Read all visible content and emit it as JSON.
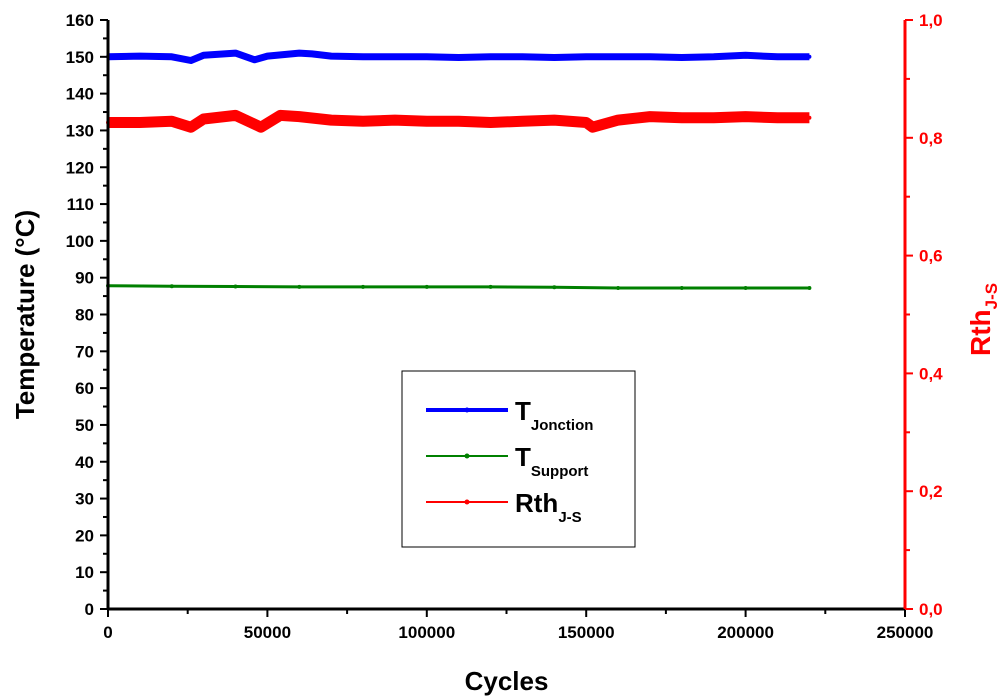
{
  "chart_data": {
    "type": "scatter",
    "xlabel": "Cycles",
    "ylabel": "Temperature (°C)",
    "y2label_main": "Rth",
    "y2label_sub": "J-S",
    "xlim": [
      0,
      250000
    ],
    "ylim": [
      0,
      160
    ],
    "y2lim": [
      0.0,
      1.0
    ],
    "x_ticks": [
      0,
      50000,
      100000,
      150000,
      200000,
      250000
    ],
    "x_tick_labels": [
      "0",
      "50000",
      "100000",
      "150000",
      "200000",
      "250000"
    ],
    "y_ticks": [
      0,
      10,
      20,
      30,
      40,
      50,
      60,
      70,
      80,
      90,
      100,
      110,
      120,
      130,
      140,
      150,
      160
    ],
    "y_tick_labels": [
      "0",
      "10",
      "20",
      "30",
      "40",
      "50",
      "60",
      "70",
      "80",
      "90",
      "100",
      "110",
      "120",
      "130",
      "140",
      "150",
      "160"
    ],
    "y2_ticks": [
      0.0,
      0.2,
      0.4,
      0.6,
      0.8,
      1.0
    ],
    "y2_tick_labels": [
      "0,0",
      "0,2",
      "0,4",
      "0,6",
      "0,8",
      "1,0"
    ],
    "grid": false,
    "legend_position": "center",
    "series": [
      {
        "name_main": "T",
        "name_sub": "Jonction",
        "axis": "left",
        "color": "#0000ff",
        "x": [
          0,
          10000,
          20000,
          26000,
          30000,
          40000,
          46000,
          50000,
          60000,
          64000,
          70000,
          80000,
          90000,
          100000,
          110000,
          120000,
          130000,
          140000,
          150000,
          160000,
          170000,
          180000,
          190000,
          200000,
          210000,
          220000
        ],
        "values": [
          150.0,
          150.2,
          150.0,
          149.0,
          150.4,
          151.0,
          149.2,
          150.2,
          151.0,
          150.8,
          150.2,
          150.0,
          150.0,
          150.0,
          149.8,
          150.0,
          150.0,
          149.8,
          150.0,
          150.0,
          150.0,
          149.8,
          150.0,
          150.4,
          150.0,
          150.0
        ]
      },
      {
        "name_main": "T",
        "name_sub": "Support",
        "axis": "left",
        "color": "#008000",
        "x": [
          0,
          20000,
          40000,
          60000,
          80000,
          100000,
          120000,
          140000,
          160000,
          180000,
          200000,
          220000
        ],
        "values": [
          87.8,
          87.7,
          87.6,
          87.5,
          87.5,
          87.5,
          87.5,
          87.4,
          87.2,
          87.2,
          87.2,
          87.2
        ]
      },
      {
        "name_main": "Rth",
        "name_sub": "J-S",
        "axis": "right",
        "color": "#ff0000",
        "x": [
          0,
          10000,
          20000,
          26000,
          30000,
          40000,
          48000,
          54000,
          60000,
          70000,
          80000,
          90000,
          100000,
          110000,
          120000,
          130000,
          140000,
          150000,
          152000,
          160000,
          170000,
          180000,
          190000,
          200000,
          210000,
          220000
        ],
        "values": [
          0.826,
          0.826,
          0.828,
          0.818,
          0.832,
          0.838,
          0.818,
          0.838,
          0.836,
          0.83,
          0.828,
          0.83,
          0.828,
          0.828,
          0.826,
          0.828,
          0.83,
          0.826,
          0.818,
          0.83,
          0.836,
          0.834,
          0.834,
          0.836,
          0.834,
          0.834
        ]
      }
    ]
  }
}
